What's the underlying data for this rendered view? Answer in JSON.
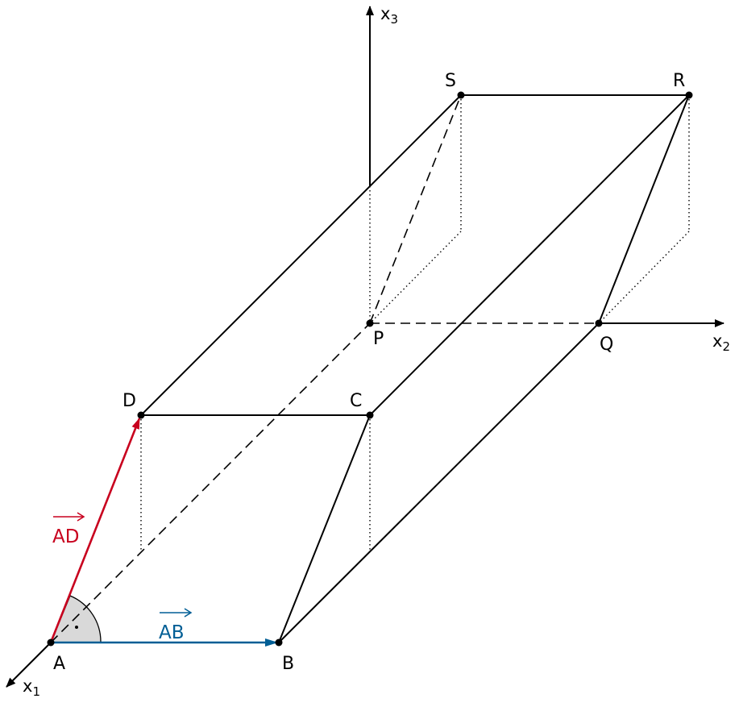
{
  "points": {
    "A": "A",
    "B": "B",
    "C": "C",
    "D": "D",
    "P": "P",
    "Q": "Q",
    "R": "R",
    "S": "S"
  },
  "axes": {
    "x1": {
      "base": "x",
      "sub": "1"
    },
    "x2": {
      "base": "x",
      "sub": "2"
    },
    "x3": {
      "base": "x",
      "sub": "3"
    }
  },
  "vectors": {
    "AD": {
      "label": "AD",
      "color": "#c8001e"
    },
    "AB": {
      "label": "AB",
      "color": "#005e95"
    }
  },
  "colors": {
    "line": "#000000",
    "angle_fill": "#d9d9d9"
  },
  "annotations": {
    "right_angle_marker": "right-angle"
  }
}
